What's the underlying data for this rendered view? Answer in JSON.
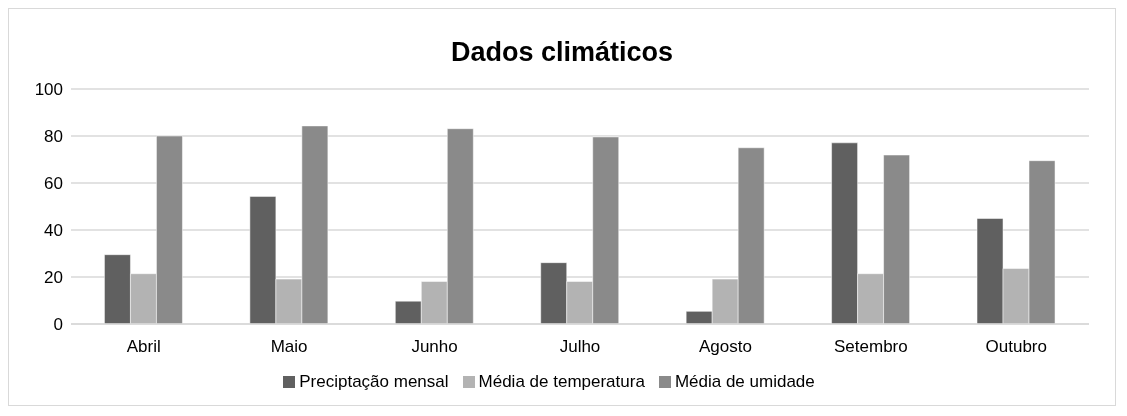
{
  "chart_data": {
    "type": "bar",
    "title": "Dados climáticos",
    "categories": [
      "Abril",
      "Maio",
      "Junho",
      "Julho",
      "Agosto",
      "Setembro",
      "Outubro"
    ],
    "series": [
      {
        "name": "Preciptação mensal",
        "color": "#606060",
        "values": [
          29.5,
          54.3,
          9.7,
          26.1,
          5.4,
          77.1,
          44.9
        ]
      },
      {
        "name": "Média de temperatura",
        "color": "#b3b3b3",
        "values": [
          21.4,
          19.1,
          18.1,
          18.1,
          19.1,
          21.4,
          23.6
        ]
      },
      {
        "name": "Média de umidade",
        "color": "#8a8a8a",
        "values": [
          80,
          84.3,
          83.1,
          79.6,
          75,
          71.9,
          69.5
        ]
      }
    ],
    "ylim": [
      0,
      100
    ],
    "yticks": [
      0,
      20,
      40,
      60,
      80,
      100
    ],
    "grid": "y",
    "legend": "bottom"
  }
}
